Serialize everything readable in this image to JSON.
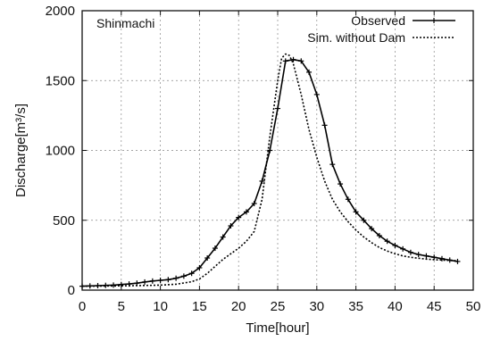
{
  "chart_data": {
    "type": "line",
    "annotation": "Shinmachi",
    "xlabel": "Time[hour]",
    "ylabel": "Discharge[m³/s]",
    "xlim": [
      0,
      50
    ],
    "ylim": [
      0,
      2000
    ],
    "xticks": [
      "0",
      "5",
      "10",
      "15",
      "20",
      "25",
      "30",
      "35",
      "40",
      "45",
      "50"
    ],
    "yticks": [
      "0",
      "500",
      "1000",
      "1500",
      "2000"
    ],
    "grid": true,
    "legend_position": "top-right",
    "series": [
      {
        "name": "Observed",
        "style": "solid-with-markers",
        "color": "#000000",
        "x": [
          0,
          1,
          2,
          3,
          4,
          5,
          6,
          7,
          8,
          9,
          10,
          11,
          12,
          13,
          14,
          15,
          16,
          17,
          18,
          19,
          20,
          21,
          22,
          23,
          24,
          25,
          26,
          27,
          28,
          29,
          30,
          31,
          32,
          33,
          34,
          35,
          36,
          37,
          38,
          39,
          40,
          41,
          42,
          43,
          44,
          45,
          46,
          47,
          48
        ],
        "y": [
          28,
          30,
          32,
          34,
          36,
          40,
          44,
          50,
          58,
          65,
          70,
          75,
          85,
          100,
          120,
          160,
          230,
          300,
          380,
          460,
          520,
          560,
          620,
          780,
          1000,
          1300,
          1640,
          1650,
          1640,
          1560,
          1400,
          1180,
          900,
          760,
          650,
          560,
          500,
          440,
          390,
          350,
          320,
          295,
          270,
          255,
          245,
          235,
          225,
          215,
          205
        ]
      },
      {
        "name": "Sim. without Dam",
        "style": "dotted",
        "color": "#000000",
        "x": [
          0,
          2,
          4,
          6,
          8,
          10,
          12,
          14,
          15,
          16,
          17,
          18,
          19,
          20,
          21,
          22,
          23,
          24,
          25,
          25.5,
          26,
          26.5,
          27,
          28,
          29,
          30,
          31,
          32,
          33,
          34,
          35,
          36,
          37,
          38,
          39,
          40,
          41,
          42,
          43,
          44,
          45,
          46,
          47,
          48
        ],
        "y": [
          28,
          29,
          30,
          31,
          33,
          36,
          42,
          60,
          80,
          120,
          170,
          220,
          260,
          300,
          350,
          420,
          650,
          1100,
          1500,
          1660,
          1690,
          1680,
          1620,
          1400,
          1150,
          950,
          780,
          650,
          560,
          490,
          430,
          380,
          340,
          305,
          280,
          260,
          245,
          235,
          228,
          222,
          218,
          215,
          212,
          210
        ]
      }
    ]
  }
}
